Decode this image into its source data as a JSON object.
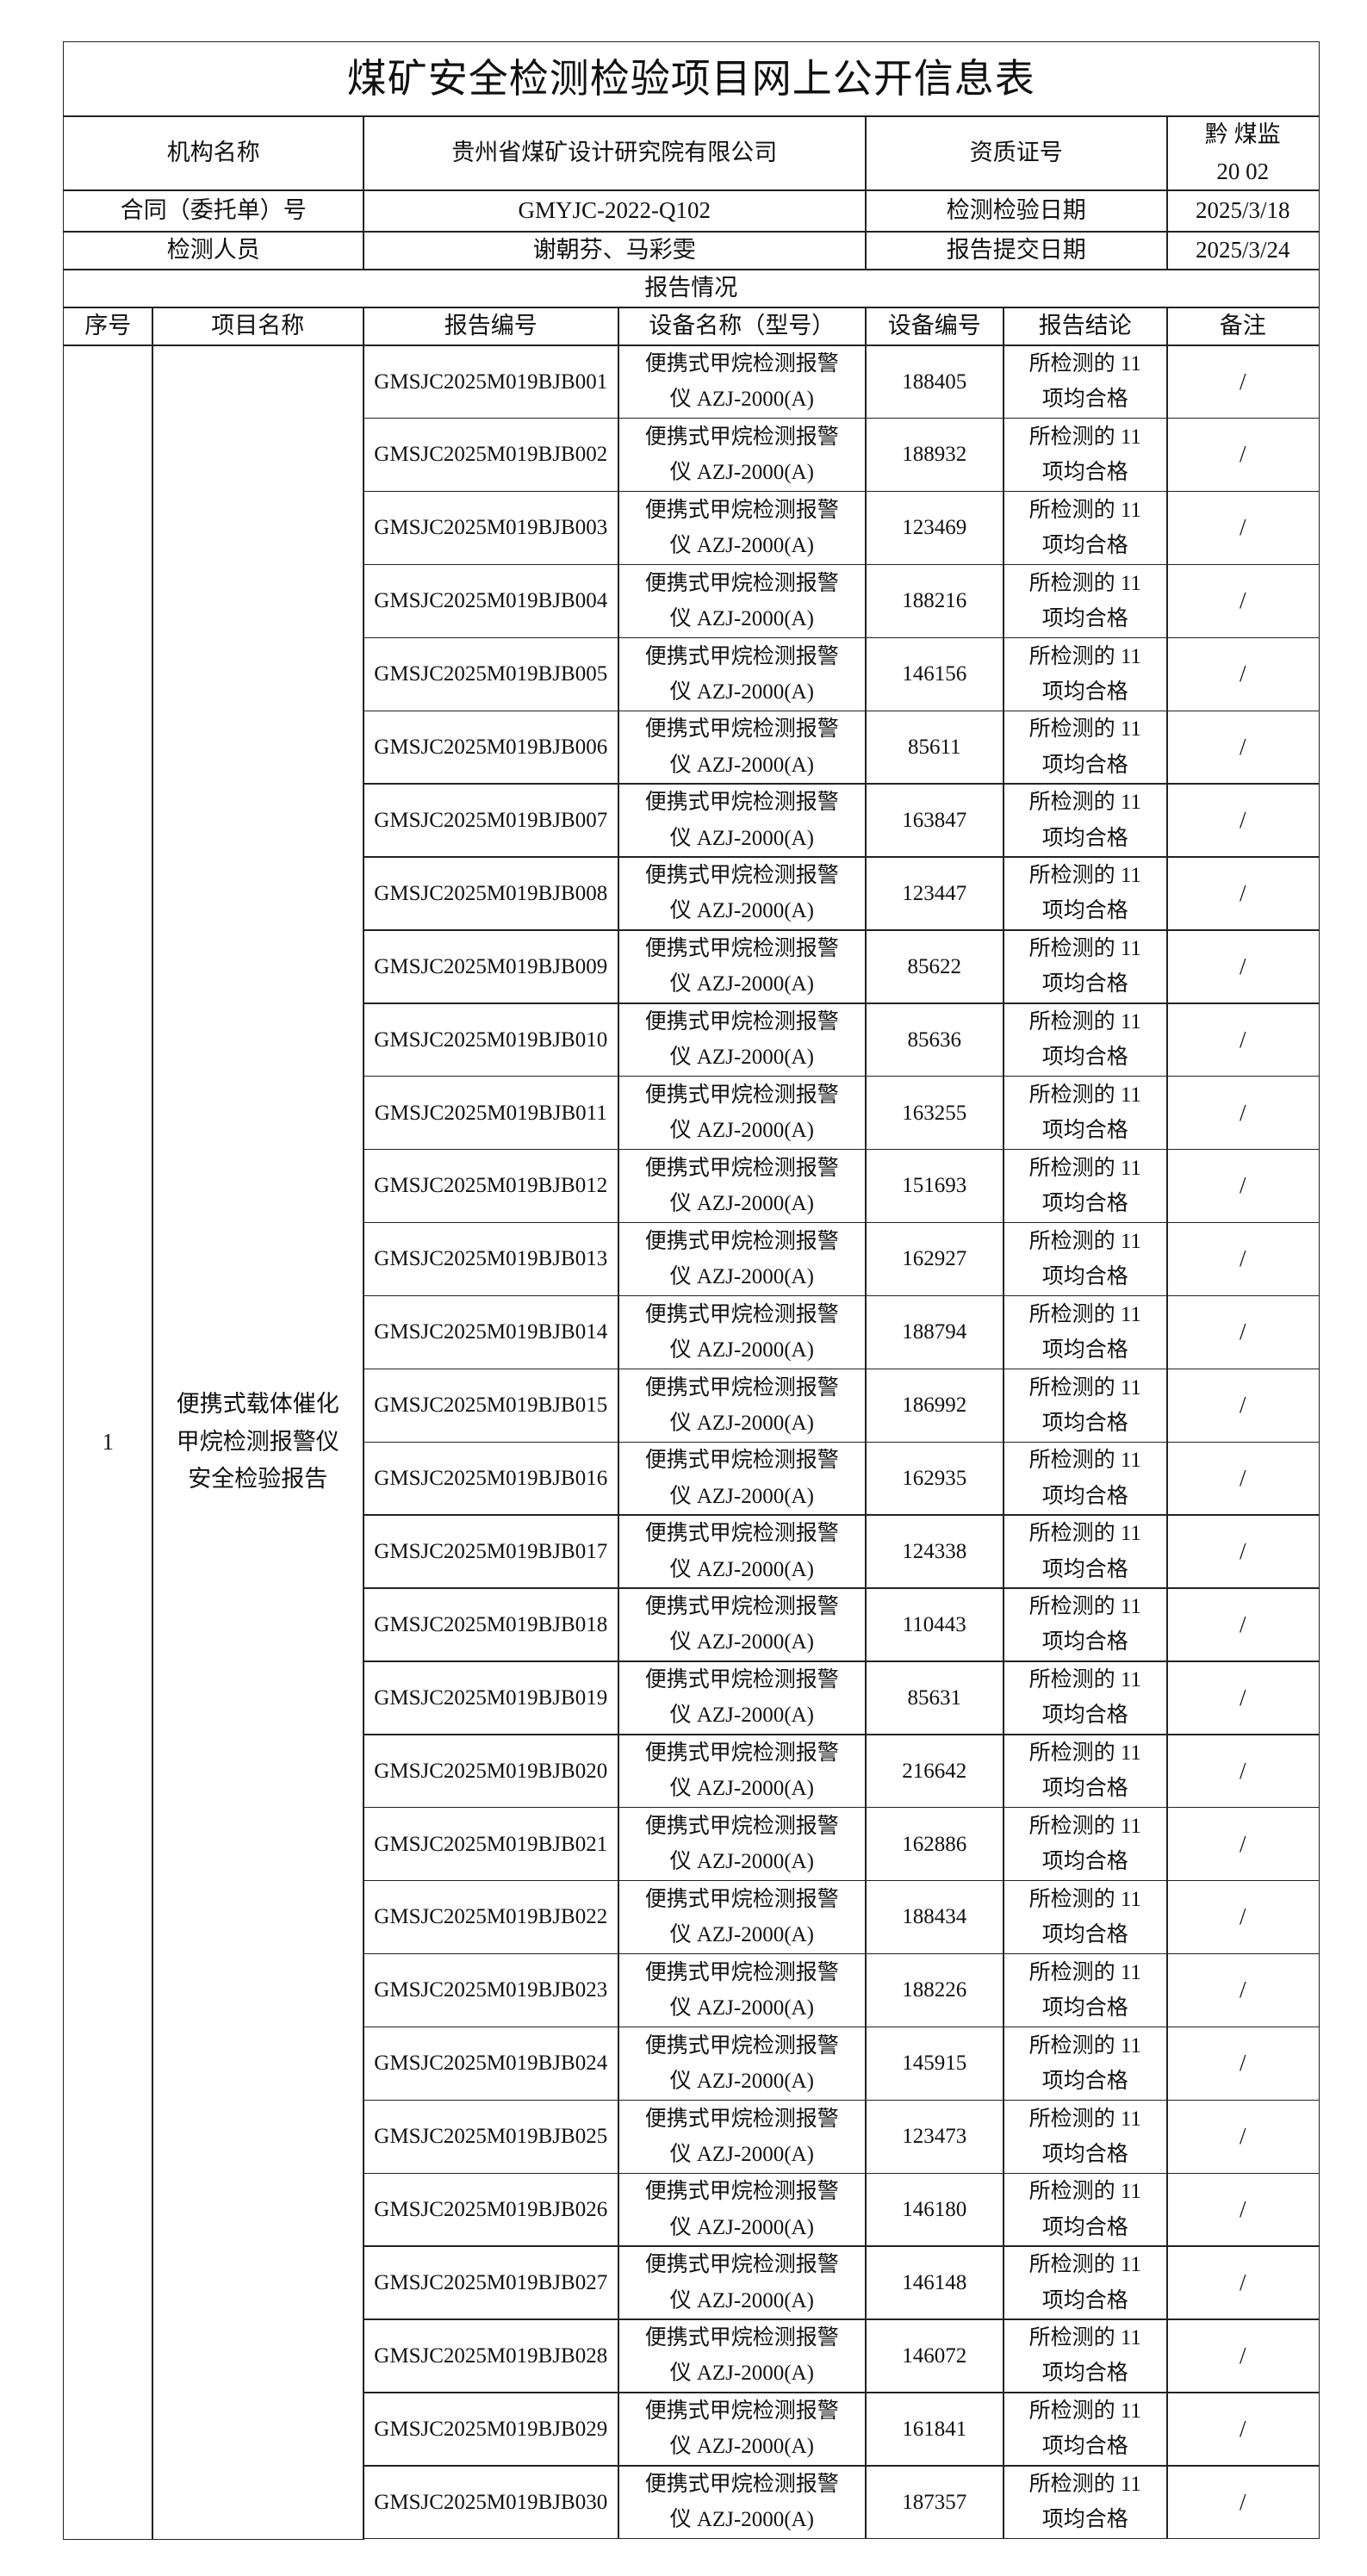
{
  "title": "煤矿安全检测检验项目网上公开信息表",
  "info": {
    "org_label": "机构名称",
    "org": "贵州省煤矿设计研究院有限公司",
    "cert_label": "资质证号",
    "cert_lines": [
      "黔 煤监",
      "20 02"
    ],
    "contract_label": "合同（委托单）号",
    "contract": "GMYJC-2022-Q102",
    "test_date_label": "检测检验日期",
    "test_date": "2025/3/18",
    "staff_label": "检测人员",
    "staff": "谢朝芬、马彩雯",
    "submit_date_label": "报告提交日期",
    "submit_date": "2025/3/24"
  },
  "report_section": "报告情况",
  "columns": [
    "序号",
    "项目名称",
    "报告编号",
    "设备名称（型号）",
    "设备编号",
    "报告结论",
    "备注"
  ],
  "project": {
    "index": "1",
    "name": "便携式载体催化甲烷检测报警仪安全检验报告"
  },
  "rows": [
    {
      "report_no": "GMSJC2025M019BJB001",
      "device": "便携式甲烷检测报警仪 AZJ-2000(A)",
      "device_no": "188405",
      "conclusion": "所检测的 11 项均合格",
      "remark": "/"
    },
    {
      "report_no": "GMSJC2025M019BJB002",
      "device": "便携式甲烷检测报警仪 AZJ-2000(A)",
      "device_no": "188932",
      "conclusion": "所检测的 11 项均合格",
      "remark": "/"
    },
    {
      "report_no": "GMSJC2025M019BJB003",
      "device": "便携式甲烷检测报警仪 AZJ-2000(A)",
      "device_no": "123469",
      "conclusion": "所检测的 11 项均合格",
      "remark": "/"
    },
    {
      "report_no": "GMSJC2025M019BJB004",
      "device": "便携式甲烷检测报警仪 AZJ-2000(A)",
      "device_no": "188216",
      "conclusion": "所检测的 11 项均合格",
      "remark": "/"
    },
    {
      "report_no": "GMSJC2025M019BJB005",
      "device": "便携式甲烷检测报警仪 AZJ-2000(A)",
      "device_no": "146156",
      "conclusion": "所检测的 11 项均合格",
      "remark": "/"
    },
    {
      "report_no": "GMSJC2025M019BJB006",
      "device": "便携式甲烷检测报警仪 AZJ-2000(A)",
      "device_no": "85611",
      "conclusion": "所检测的 11 项均合格",
      "remark": "/"
    },
    {
      "report_no": "GMSJC2025M019BJB007",
      "device": "便携式甲烷检测报警仪 AZJ-2000(A)",
      "device_no": "163847",
      "conclusion": "所检测的 11 项均合格",
      "remark": "/"
    },
    {
      "report_no": "GMSJC2025M019BJB008",
      "device": "便携式甲烷检测报警仪 AZJ-2000(A)",
      "device_no": "123447",
      "conclusion": "所检测的 11 项均合格",
      "remark": "/"
    },
    {
      "report_no": "GMSJC2025M019BJB009",
      "device": "便携式甲烷检测报警仪 AZJ-2000(A)",
      "device_no": "85622",
      "conclusion": "所检测的 11 项均合格",
      "remark": "/"
    },
    {
      "report_no": "GMSJC2025M019BJB010",
      "device": "便携式甲烷检测报警仪 AZJ-2000(A)",
      "device_no": "85636",
      "conclusion": "所检测的 11 项均合格",
      "remark": "/"
    },
    {
      "report_no": "GMSJC2025M019BJB011",
      "device": "便携式甲烷检测报警仪 AZJ-2000(A)",
      "device_no": "163255",
      "conclusion": "所检测的 11 项均合格",
      "remark": "/"
    },
    {
      "report_no": "GMSJC2025M019BJB012",
      "device": "便携式甲烷检测报警仪 AZJ-2000(A)",
      "device_no": "151693",
      "conclusion": "所检测的 11 项均合格",
      "remark": "/"
    },
    {
      "report_no": "GMSJC2025M019BJB013",
      "device": "便携式甲烷检测报警仪 AZJ-2000(A)",
      "device_no": "162927",
      "conclusion": "所检测的 11 项均合格",
      "remark": "/"
    },
    {
      "report_no": "GMSJC2025M019BJB014",
      "device": "便携式甲烷检测报警仪 AZJ-2000(A)",
      "device_no": "188794",
      "conclusion": "所检测的 11 项均合格",
      "remark": "/"
    },
    {
      "report_no": "GMSJC2025M019BJB015",
      "device": "便携式甲烷检测报警仪 AZJ-2000(A)",
      "device_no": "186992",
      "conclusion": "所检测的 11 项均合格",
      "remark": "/"
    },
    {
      "report_no": "GMSJC2025M019BJB016",
      "device": "便携式甲烷检测报警仪 AZJ-2000(A)",
      "device_no": "162935",
      "conclusion": "所检测的 11 项均合格",
      "remark": "/"
    },
    {
      "report_no": "GMSJC2025M019BJB017",
      "device": "便携式甲烷检测报警仪 AZJ-2000(A)",
      "device_no": "124338",
      "conclusion": "所检测的 11 项均合格",
      "remark": "/"
    },
    {
      "report_no": "GMSJC2025M019BJB018",
      "device": "便携式甲烷检测报警仪 AZJ-2000(A)",
      "device_no": "110443",
      "conclusion": "所检测的 11 项均合格",
      "remark": "/"
    },
    {
      "report_no": "GMSJC2025M019BJB019",
      "device": "便携式甲烷检测报警仪 AZJ-2000(A)",
      "device_no": "85631",
      "conclusion": "所检测的 11 项均合格",
      "remark": "/"
    },
    {
      "report_no": "GMSJC2025M019BJB020",
      "device": "便携式甲烷检测报警仪 AZJ-2000(A)",
      "device_no": "216642",
      "conclusion": "所检测的 11 项均合格",
      "remark": "/"
    },
    {
      "report_no": "GMSJC2025M019BJB021",
      "device": "便携式甲烷检测报警仪 AZJ-2000(A)",
      "device_no": "162886",
      "conclusion": "所检测的 11 项均合格",
      "remark": "/"
    },
    {
      "report_no": "GMSJC2025M019BJB022",
      "device": "便携式甲烷检测报警仪 AZJ-2000(A)",
      "device_no": "188434",
      "conclusion": "所检测的 11 项均合格",
      "remark": "/"
    },
    {
      "report_no": "GMSJC2025M019BJB023",
      "device": "便携式甲烷检测报警仪 AZJ-2000(A)",
      "device_no": "188226",
      "conclusion": "所检测的 11 项均合格",
      "remark": "/"
    },
    {
      "report_no": "GMSJC2025M019BJB024",
      "device": "便携式甲烷检测报警仪 AZJ-2000(A)",
      "device_no": "145915",
      "conclusion": "所检测的 11 项均合格",
      "remark": "/"
    },
    {
      "report_no": "GMSJC2025M019BJB025",
      "device": "便携式甲烷检测报警仪 AZJ-2000(A)",
      "device_no": "123473",
      "conclusion": "所检测的 11 项均合格",
      "remark": "/"
    },
    {
      "report_no": "GMSJC2025M019BJB026",
      "device": "便携式甲烷检测报警仪 AZJ-2000(A)",
      "device_no": "146180",
      "conclusion": "所检测的 11 项均合格",
      "remark": "/"
    },
    {
      "report_no": "GMSJC2025M019BJB027",
      "device": "便携式甲烷检测报警仪 AZJ-2000(A)",
      "device_no": "146148",
      "conclusion": "所检测的 11 项均合格",
      "remark": "/"
    },
    {
      "report_no": "GMSJC2025M019BJB028",
      "device": "便携式甲烷检测报警仪 AZJ-2000(A)",
      "device_no": "146072",
      "conclusion": "所检测的 11 项均合格",
      "remark": "/"
    },
    {
      "report_no": "GMSJC2025M019BJB029",
      "device": "便携式甲烷检测报警仪 AZJ-2000(A)",
      "device_no": "161841",
      "conclusion": "所检测的 11 项均合格",
      "remark": "/"
    },
    {
      "report_no": "GMSJC2025M019BJB030",
      "device": "便携式甲烷检测报警仪 AZJ-2000(A)",
      "device_no": "187357",
      "conclusion": "所检测的 11 项均合格",
      "remark": "/"
    }
  ]
}
